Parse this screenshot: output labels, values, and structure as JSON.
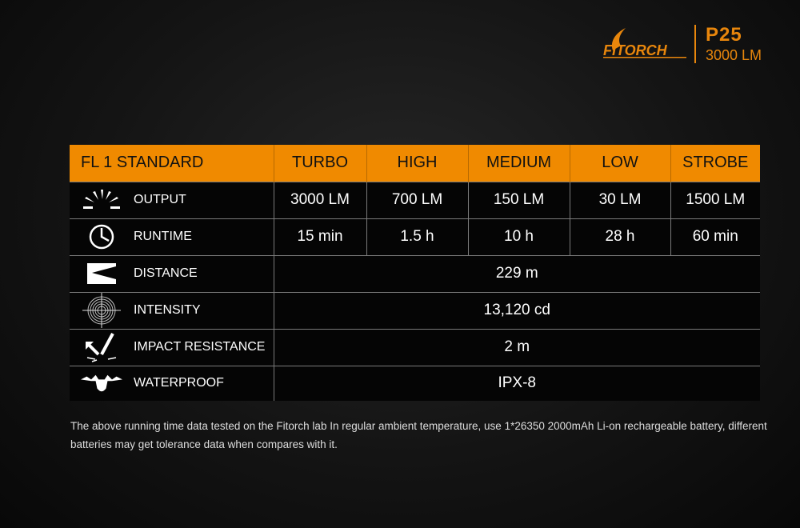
{
  "brand": {
    "logo_text": "FITORCH",
    "model": "P25",
    "lumens": "3000 LM",
    "accent": "#e8860c"
  },
  "table": {
    "headers": [
      "FL 1 STANDARD",
      "TURBO",
      "HIGH",
      "MEDIUM",
      "LOW",
      "STROBE"
    ],
    "header_color": "#f08a00",
    "rows": [
      {
        "icon": "sun-burst-icon",
        "label": "OUTPUT",
        "values": [
          "3000 LM",
          "700 LM",
          "150 LM",
          "30 LM",
          "1500 LM"
        ]
      },
      {
        "icon": "clock-icon",
        "label": "RUNTIME",
        "values": [
          "15 min",
          "1.5 h",
          "10 h",
          "28 h",
          "60 min"
        ]
      },
      {
        "icon": "beam-distance-icon",
        "label": "DISTANCE",
        "value": "229 m"
      },
      {
        "icon": "target-icon",
        "label": "INTENSITY",
        "value": "13,120 cd"
      },
      {
        "icon": "impact-icon",
        "label": "IMPACT RESISTANCE",
        "value": "2 m"
      },
      {
        "icon": "water-drop-icon",
        "label": "WATERPROOF",
        "value": "IPX-8"
      }
    ]
  },
  "note": "The above running time data tested on the Fitorch lab In regular ambient temperature, use 1*26350 2000mAh Li-on rechargeable battery, different batteries may get tolerance data when compares with it."
}
